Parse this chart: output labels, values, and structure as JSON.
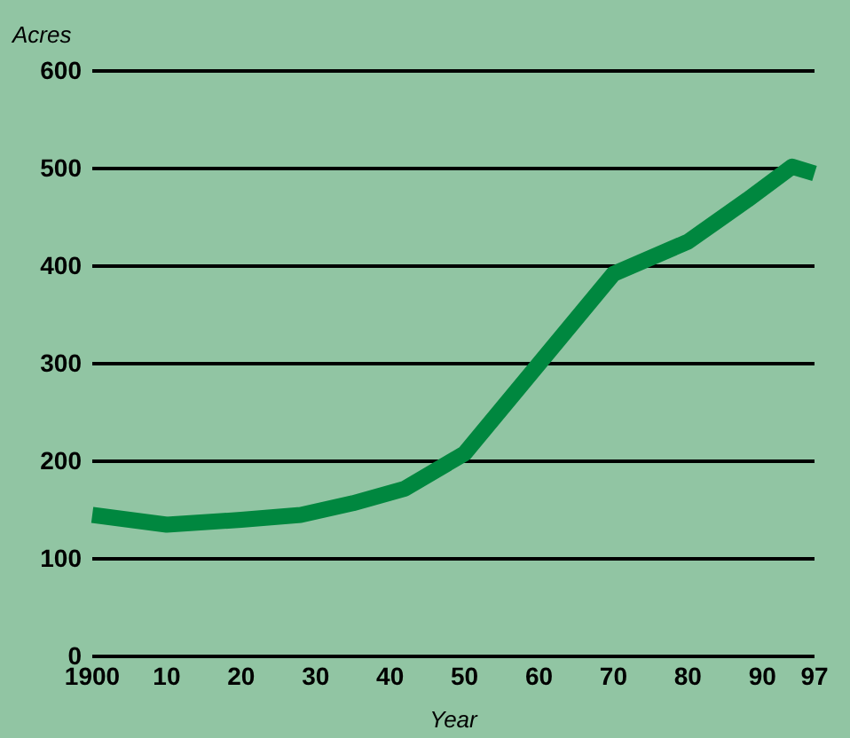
{
  "chart_data": {
    "type": "line",
    "xlabel": "Year",
    "ylabel": "Acres",
    "x": [
      1900,
      1910,
      1920,
      1928,
      1935,
      1942,
      1950,
      1960,
      1970,
      1980,
      1988,
      1994,
      1997
    ],
    "series": [
      {
        "color": "#00873f",
        "values": [
          145,
          135,
          140,
          145,
          157,
          172,
          208,
          300,
          392,
          425,
          468,
          502,
          495
        ]
      }
    ],
    "xlim": [
      1900,
      1997
    ],
    "ylim": [
      0,
      600
    ],
    "xticks": [
      {
        "value": 1900,
        "label": "1900"
      },
      {
        "value": 1910,
        "label": "10"
      },
      {
        "value": 1920,
        "label": "20"
      },
      {
        "value": 1930,
        "label": "30"
      },
      {
        "value": 1940,
        "label": "40"
      },
      {
        "value": 1950,
        "label": "50"
      },
      {
        "value": 1960,
        "label": "60"
      },
      {
        "value": 1970,
        "label": "70"
      },
      {
        "value": 1980,
        "label": "80"
      },
      {
        "value": 1990,
        "label": "90"
      },
      {
        "value": 1997,
        "label": "97"
      }
    ],
    "yticks": [
      0,
      100,
      200,
      300,
      400,
      500,
      600
    ],
    "grid": "y",
    "line_style": "solid",
    "marker": "none"
  }
}
